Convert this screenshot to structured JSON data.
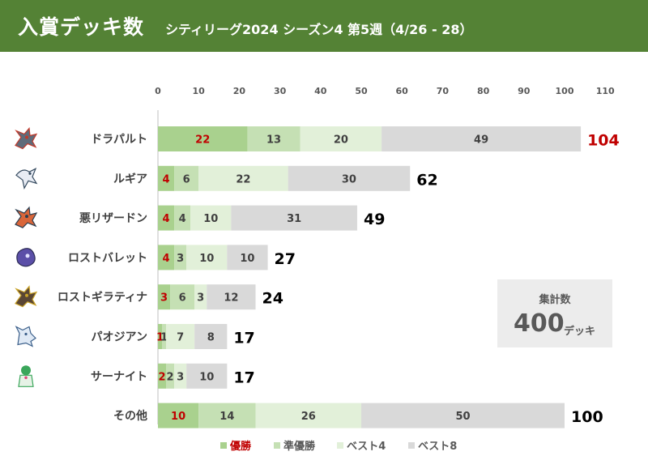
{
  "header": {
    "title": "入賞デッキ数",
    "subtitle": "シティリーグ2024 シーズン4 第5週（4/26 - 28）"
  },
  "summary": {
    "label": "集計数",
    "value": "400",
    "unit": "デッキ"
  },
  "colors": {
    "header_bg": "#548235",
    "win": "#a9d18e",
    "runner_up": "#c5e0b4",
    "best4": "#e2f0d9",
    "best8": "#d9d9d9",
    "win_text": "#c00000"
  },
  "chart_data": {
    "type": "bar",
    "orientation": "horizontal",
    "stacked": true,
    "categories": [
      "ドラパルト",
      "ルギア",
      "悪リザードン",
      "ロストバレット",
      "ロストギラティナ",
      "パオジアン",
      "サーナイト",
      "その他"
    ],
    "icons": [
      "dragapult-icon",
      "lugia-icon",
      "charizard-icon",
      "lost-box-icon",
      "giratina-icon",
      "chien-pao-icon",
      "gardevoir-icon",
      ""
    ],
    "series": [
      {
        "name": "優勝",
        "values": [
          22,
          4,
          4,
          4,
          3,
          1,
          2,
          10
        ]
      },
      {
        "name": "準優勝",
        "values": [
          13,
          6,
          4,
          3,
          6,
          1,
          2,
          14
        ]
      },
      {
        "name": "ベスト4",
        "values": [
          20,
          22,
          10,
          10,
          3,
          7,
          3,
          26
        ]
      },
      {
        "name": "ベスト8",
        "values": [
          49,
          30,
          31,
          10,
          12,
          8,
          10,
          50
        ]
      }
    ],
    "totals": [
      104,
      62,
      49,
      27,
      24,
      17,
      17,
      100
    ],
    "xlim": [
      0,
      110
    ],
    "xticks": [
      0,
      10,
      20,
      30,
      40,
      50,
      60,
      70,
      80,
      90,
      100,
      110
    ],
    "xaxis_position": "top",
    "grid": false,
    "legend_position": "bottom"
  }
}
